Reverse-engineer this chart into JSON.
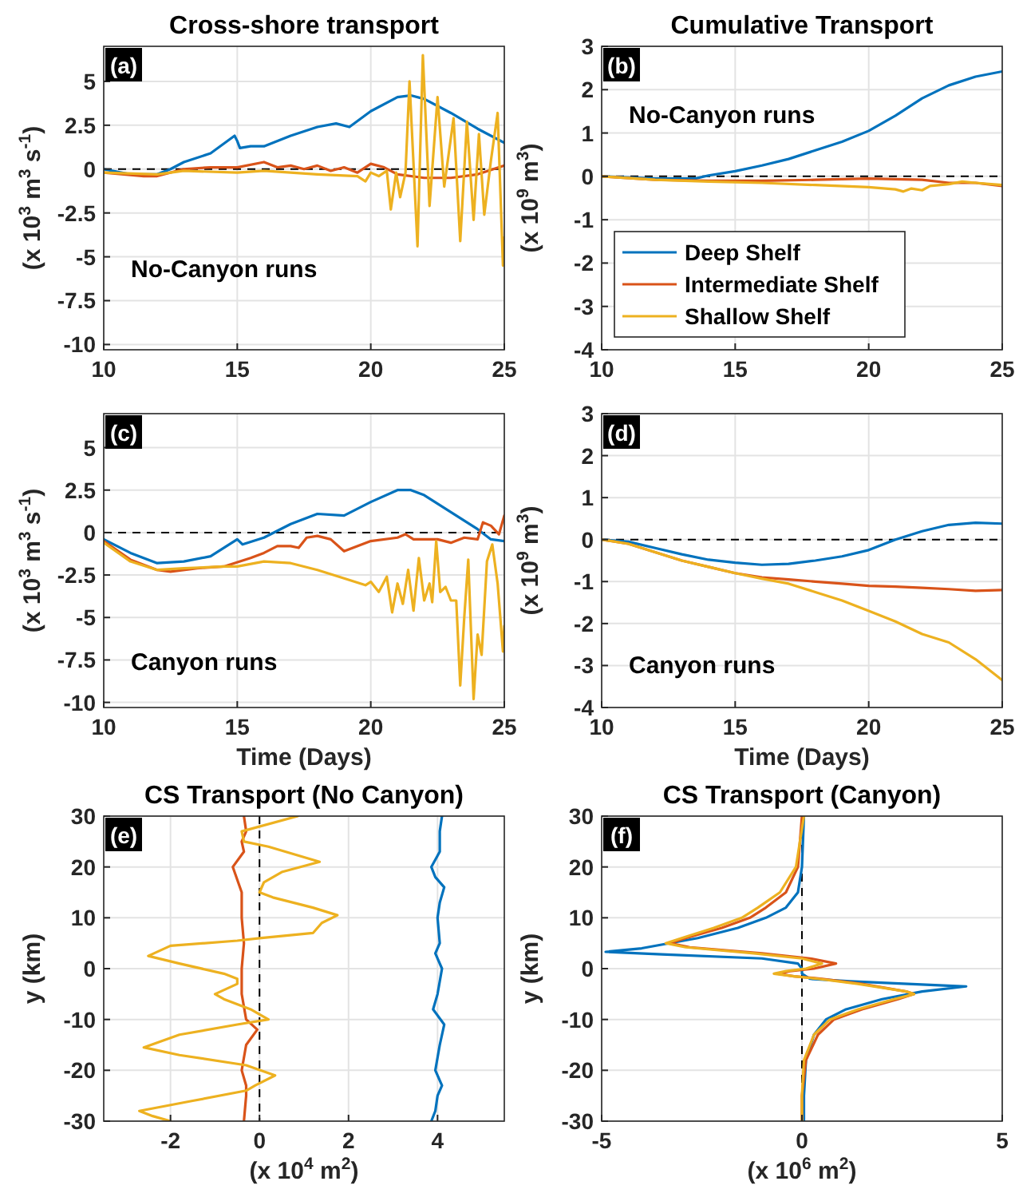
{
  "chart_data": [
    {
      "type": "line",
      "title": "Cross-shore transport",
      "ylabel": "(x 10$^{3}$ m$^{3}$ s$^{-1}$)",
      "xlim": [
        10,
        25
      ],
      "xticks": [
        10,
        15,
        20,
        25
      ],
      "ylim": [
        -10.3,
        7
      ],
      "yticks": [
        -10,
        -7.5,
        -5,
        -2.5,
        0,
        2.5,
        5
      ],
      "grid": true,
      "annotations": [
        "(a)",
        "No-Canyon runs"
      ],
      "ref_lines": [
        {
          "axis": "y",
          "value": 0,
          "color": "#000000",
          "line_style": "dashed"
        }
      ],
      "series": [
        {
          "color": "#0072bd",
          "x": [
            10,
            11,
            12,
            12.5,
            13,
            14,
            14.9,
            15,
            15.1,
            15.5,
            16,
            17,
            18,
            18.7,
            19.2,
            20,
            21,
            21.5,
            22,
            23,
            24,
            25
          ],
          "values": [
            0,
            -0.3,
            -0.3,
            0,
            0.4,
            0.9,
            1.9,
            1.6,
            1.2,
            1.3,
            1.3,
            1.9,
            2.4,
            2.6,
            2.4,
            3.3,
            4.1,
            4.2,
            4,
            3.2,
            2.3,
            1.5
          ]
        },
        {
          "color": "#d95319",
          "x": [
            10,
            11.5,
            12,
            13,
            14,
            15,
            16,
            16.5,
            17,
            17.5,
            18,
            18.5,
            19,
            19.5,
            20,
            20.5,
            21,
            22,
            23,
            24,
            25
          ],
          "values": [
            -0.2,
            -0.4,
            -0.4,
            0,
            0.1,
            0.1,
            0.4,
            0.1,
            0.2,
            0,
            0.2,
            -0.1,
            0.1,
            -0.2,
            0.3,
            0.1,
            -0.3,
            -0.5,
            -0.5,
            -0.3,
            0.2
          ]
        },
        {
          "color": "#edb120",
          "x": [
            10,
            12,
            13,
            15,
            16,
            18,
            19.5,
            19.8,
            20,
            20.3,
            20.6,
            20.75,
            20.95,
            21.1,
            21.3,
            21.45,
            21.75,
            21.95,
            22.2,
            22.5,
            22.75,
            23.1,
            23.35,
            23.6,
            23.85,
            24.05,
            24.25,
            24.5,
            24.75,
            24.95,
            25
          ],
          "values": [
            -0.2,
            -0.3,
            -0.1,
            -0.2,
            -0.1,
            -0.3,
            -0.4,
            -0.7,
            -0.2,
            -0.4,
            -0.1,
            -2.3,
            -0.2,
            -1.6,
            -0.2,
            5,
            -4.4,
            6.5,
            -2.1,
            4.1,
            -1,
            2.9,
            -4.1,
            2.7,
            -2.9,
            2,
            -2.6,
            0.5,
            3.2,
            -5.5,
            -3.9
          ]
        }
      ]
    },
    {
      "type": "line",
      "title": "Cumulative Transport",
      "ylabel": "(x 10$^{9}$ m$^{3}$)",
      "xlim": [
        10,
        25
      ],
      "xticks": [
        10,
        15,
        20,
        25
      ],
      "ylim": [
        -4,
        3
      ],
      "yticks": [
        -4,
        -3,
        -2,
        -1,
        0,
        1,
        2,
        3
      ],
      "grid": true,
      "legend": "bottom left",
      "annotations": [
        "(b)",
        "No-Canyon runs"
      ],
      "ref_lines": [
        {
          "axis": "y",
          "value": 0,
          "color": "#000000",
          "line_style": "dashed"
        }
      ],
      "series": [
        {
          "name": "Deep Shelf",
          "color": "#0072bd",
          "x": [
            10,
            12,
            13.5,
            14,
            15,
            16,
            17,
            18,
            19,
            20,
            21,
            22,
            23,
            24,
            25
          ],
          "values": [
            0,
            -0.05,
            -0.05,
            0.02,
            0.12,
            0.25,
            0.4,
            0.6,
            0.8,
            1.05,
            1.4,
            1.8,
            2.1,
            2.3,
            2.42
          ]
        },
        {
          "name": "Intermediate Shelf",
          "color": "#d95319",
          "x": [
            10,
            12,
            14,
            16,
            18,
            20,
            22,
            23,
            24,
            25
          ],
          "values": [
            0,
            -0.08,
            -0.1,
            -0.1,
            -0.08,
            -0.05,
            -0.08,
            -0.15,
            -0.15,
            -0.22
          ]
        },
        {
          "name": "Shallow Shelf",
          "color": "#edb120",
          "x": [
            10,
            12,
            14,
            16,
            18,
            20,
            21,
            21.3,
            21.6,
            22,
            22.3,
            23,
            23.5,
            24,
            25
          ],
          "values": [
            0,
            -0.08,
            -0.12,
            -0.15,
            -0.2,
            -0.25,
            -0.3,
            -0.35,
            -0.28,
            -0.32,
            -0.22,
            -0.18,
            -0.12,
            -0.15,
            -0.2
          ]
        }
      ]
    },
    {
      "type": "line",
      "xlabel": "Time (Days)",
      "ylabel": "(x 10$^{3}$ m$^{3}$ s$^{-1}$)",
      "xlim": [
        10,
        25
      ],
      "xticks": [
        10,
        15,
        20,
        25
      ],
      "ylim": [
        -10.3,
        7
      ],
      "yticks": [
        -10,
        -7.5,
        -5,
        -2.5,
        0,
        2.5,
        5
      ],
      "grid": true,
      "annotations": [
        "(c)",
        "Canyon runs"
      ],
      "ref_lines": [
        {
          "axis": "y",
          "value": 0,
          "color": "#000000",
          "line_style": "dashed"
        }
      ],
      "series": [
        {
          "color": "#0072bd",
          "x": [
            10,
            11,
            12,
            13,
            14,
            14.8,
            15,
            15.2,
            16,
            17,
            18,
            19,
            20,
            21,
            21.5,
            22,
            23,
            24,
            24.5,
            25
          ],
          "values": [
            -0.4,
            -1.2,
            -1.8,
            -1.7,
            -1.4,
            -0.6,
            -0.4,
            -0.7,
            -0.3,
            0.5,
            1.1,
            1,
            1.8,
            2.5,
            2.5,
            2.2,
            1.2,
            0.2,
            -0.4,
            -0.5
          ]
        },
        {
          "color": "#d95319",
          "x": [
            10,
            11,
            12,
            12.5,
            13.5,
            14.5,
            15.5,
            16,
            16.5,
            17,
            17.3,
            17.6,
            18,
            18.5,
            19,
            20,
            21,
            21.3,
            21.6,
            22.5,
            23,
            23.5,
            24,
            24.2,
            24.5,
            24.8,
            25
          ],
          "values": [
            -0.5,
            -1.6,
            -2.2,
            -2.3,
            -2.1,
            -2,
            -1.5,
            -1.2,
            -0.8,
            -0.8,
            -0.9,
            -0.3,
            -0.2,
            -0.4,
            -1.1,
            -0.5,
            -0.3,
            -0.1,
            -0.4,
            -0.4,
            -0.6,
            -0.3,
            -0.4,
            0.6,
            0.4,
            -0.1,
            1
          ]
        },
        {
          "color": "#edb120",
          "x": [
            10,
            11,
            12,
            13,
            14.5,
            15,
            16,
            17,
            18,
            19,
            19.8,
            20,
            20.3,
            20.6,
            20.8,
            21,
            21.2,
            21.4,
            21.6,
            21.8,
            22,
            22.2,
            22.3,
            22.45,
            22.6,
            22.8,
            23,
            23.2,
            23.35,
            23.5,
            23.65,
            23.85,
            24,
            24.15,
            24.35,
            24.55,
            24.75,
            24.95,
            25
          ],
          "values": [
            -0.6,
            -1.7,
            -2.2,
            -2.1,
            -2,
            -2,
            -1.7,
            -1.8,
            -2.2,
            -2.7,
            -3.1,
            -2.9,
            -3.5,
            -2.6,
            -4.7,
            -3,
            -4.2,
            -2.2,
            -4.6,
            -1.5,
            -4,
            -3,
            -4.1,
            -0.5,
            -3.5,
            -3.2,
            -4,
            -4,
            -9,
            -5,
            -1.6,
            -9.8,
            -6,
            -7.2,
            -1.7,
            -0.7,
            -3,
            -7,
            -5.5
          ]
        }
      ]
    },
    {
      "type": "line",
      "xlabel": "Time (Days)",
      "ylabel": "(x 10$^{9}$ m$^{3}$)",
      "xlim": [
        10,
        25
      ],
      "xticks": [
        10,
        15,
        20,
        25
      ],
      "ylim": [
        -4,
        3
      ],
      "yticks": [
        -4,
        -3,
        -2,
        -1,
        0,
        1,
        2,
        3
      ],
      "grid": true,
      "annotations": [
        "(d)",
        "Canyon runs"
      ],
      "ref_lines": [
        {
          "axis": "y",
          "value": 0,
          "color": "#000000",
          "line_style": "dashed"
        }
      ],
      "series": [
        {
          "color": "#0072bd",
          "x": [
            10,
            11,
            12,
            13,
            14,
            15,
            16,
            17,
            18,
            19,
            20,
            21,
            22,
            23,
            24,
            25
          ],
          "values": [
            0,
            -0.05,
            -0.2,
            -0.35,
            -0.48,
            -0.55,
            -0.6,
            -0.58,
            -0.5,
            -0.4,
            -0.25,
            0,
            0.2,
            0.35,
            0.4,
            0.38
          ]
        },
        {
          "color": "#d95319",
          "x": [
            10,
            11,
            12,
            13,
            14,
            15,
            16,
            17,
            18,
            19,
            20,
            21,
            22,
            23,
            24,
            25
          ],
          "values": [
            0,
            -0.1,
            -0.3,
            -0.5,
            -0.65,
            -0.8,
            -0.9,
            -0.95,
            -1,
            -1.05,
            -1.1,
            -1.12,
            -1.15,
            -1.18,
            -1.22,
            -1.2
          ]
        },
        {
          "color": "#edb120",
          "x": [
            10,
            11,
            12,
            13,
            14,
            15,
            16,
            17,
            18,
            19,
            20,
            21,
            22,
            23,
            24,
            25
          ],
          "values": [
            0,
            -0.1,
            -0.3,
            -0.5,
            -0.65,
            -0.8,
            -0.93,
            -1.05,
            -1.25,
            -1.45,
            -1.7,
            -1.95,
            -2.25,
            -2.45,
            -2.85,
            -3.35
          ]
        }
      ]
    },
    {
      "type": "line",
      "title": "CS Transport (No Canyon)",
      "xlabel": "(x 10$^{4}$ m$^{2}$)",
      "ylabel": "y (km)",
      "xlim": [
        -3.5,
        5.5
      ],
      "xticks": [
        -2,
        0,
        2,
        4
      ],
      "ylim": [
        -30,
        30
      ],
      "yticks": [
        -30,
        -20,
        -10,
        0,
        10,
        20,
        30
      ],
      "grid": true,
      "annotations": [
        "(e)"
      ],
      "ref_lines": [
        {
          "axis": "x",
          "value": 0,
          "color": "#000000",
          "line_style": "dashed"
        }
      ],
      "series": [
        {
          "color": "#0072bd",
          "x": [
            3.86,
            3.95,
            4,
            4.1,
            3.95,
            4.05,
            4.15,
            3.9,
            4,
            4.1,
            3.95,
            4.05,
            4,
            4.05,
            4.15,
            3.95,
            3.86,
            4.05,
            4.05,
            4.1
          ],
          "values": [
            -30,
            -28,
            -25,
            -23,
            -20,
            -15,
            -11,
            -8,
            -5,
            0,
            3,
            5,
            10,
            13,
            16,
            18,
            20,
            23,
            27,
            30
          ]
        },
        {
          "color": "#d95319",
          "x": [
            -0.35,
            -0.3,
            -0.3,
            -0.4,
            -0.3,
            -0.05,
            -0.3,
            -0.4,
            -0.4,
            -0.35,
            -0.4,
            -0.4,
            -0.6,
            -0.35,
            -0.4,
            -0.3,
            -0.35
          ],
          "values": [
            -30,
            -25,
            -23,
            -20,
            -15,
            -12,
            -10,
            -5,
            0,
            5,
            10,
            15,
            20,
            23,
            25,
            27,
            30
          ]
        },
        {
          "color": "#edb120",
          "x": [
            0.86,
            -0.4,
            -0.35,
            0.2,
            1.35,
            0.5,
            0.1,
            0,
            0.3,
            1.2,
            1.75,
            1.4,
            1.2,
            0,
            -0.5,
            -2,
            -2.5,
            -1.8,
            -0.8,
            -0.5,
            -0.5,
            -1,
            -0.8,
            -0.2,
            0.2,
            -0.5,
            -1.8,
            -2.6,
            -1.8,
            -0.3,
            0.35,
            -0.1,
            -0.3,
            -1.5,
            -2.7,
            -2.4,
            -2
          ],
          "values": [
            30,
            27,
            25,
            24,
            21,
            19,
            17,
            15,
            14,
            12,
            10.5,
            9,
            7,
            6,
            5.5,
            4.5,
            2.5,
            1,
            -1,
            -2,
            -3,
            -5,
            -6,
            -8,
            -10,
            -11,
            -13,
            -15.5,
            -17,
            -19,
            -21,
            -23,
            -24,
            -26,
            -28,
            -29,
            -30
          ]
        }
      ]
    },
    {
      "type": "line",
      "title": "CS Transport (Canyon)",
      "xlabel": "(x 10$^{6}$ m$^{2}$)",
      "ylabel": "y (km)",
      "xlim": [
        -5,
        5
      ],
      "xticks": [
        -5,
        0,
        5
      ],
      "ylim": [
        -30,
        30
      ],
      "yticks": [
        -30,
        -20,
        -10,
        0,
        10,
        20,
        30
      ],
      "grid": true,
      "annotations": [
        "(f)"
      ],
      "ref_lines": [
        {
          "axis": "x",
          "value": 0,
          "color": "#000000",
          "line_style": "dashed"
        }
      ],
      "series": [
        {
          "color": "#0072bd",
          "x": [
            0.05,
            0,
            -0.1,
            -0.4,
            -0.9,
            -1.6,
            -2.6,
            -4,
            -4.9,
            -3.5,
            -1,
            -0.1,
            0,
            0,
            0.2,
            1.2,
            4.1,
            3,
            2,
            1.1,
            0.6,
            0.3,
            0.1,
            0.05,
            0.05
          ],
          "values": [
            30,
            20,
            15,
            12,
            10,
            8,
            6,
            4,
            3.3,
            2.8,
            2,
            1,
            0,
            -1,
            -2,
            -2.5,
            -3.5,
            -4.5,
            -6,
            -8,
            -10,
            -13,
            -18,
            -25,
            -30
          ]
        },
        {
          "color": "#d95319",
          "x": [
            0,
            -0.1,
            -0.4,
            -0.9,
            -1.3,
            -2,
            -2.9,
            -3.3,
            -2.8,
            -1,
            0.2,
            0.85,
            0.3,
            -0.3,
            -0.6,
            -0.2,
            0.5,
            1.5,
            2.6,
            2.8,
            2.4,
            1.5,
            0.8,
            0.4,
            0.1,
            0,
            0
          ],
          "values": [
            30,
            20,
            15,
            12,
            10,
            8,
            6,
            5,
            4.2,
            3,
            2,
            1,
            0,
            -0.5,
            -1,
            -1.5,
            -2,
            -3,
            -4.5,
            -5,
            -6,
            -8,
            -10,
            -13,
            -18,
            -25,
            -30
          ]
        },
        {
          "color": "#edb120",
          "x": [
            0.05,
            -0.15,
            -0.55,
            -1.1,
            -1.5,
            -2.2,
            -3,
            -3.4,
            -2.9,
            -1.2,
            0,
            0.5,
            0.1,
            -0.4,
            -0.7,
            -0.2,
            0.4,
            1.4,
            2.6,
            2.8,
            2.3,
            1.4,
            0.7,
            0.3,
            0.05,
            0,
            0
          ],
          "values": [
            30,
            20,
            15,
            12,
            10,
            8,
            6,
            5,
            4.2,
            3,
            2,
            1,
            0,
            -0.5,
            -1,
            -1.5,
            -2,
            -3,
            -4.5,
            -5,
            -6,
            -8,
            -10,
            -13,
            -18,
            -25,
            -30
          ]
        }
      ]
    }
  ]
}
